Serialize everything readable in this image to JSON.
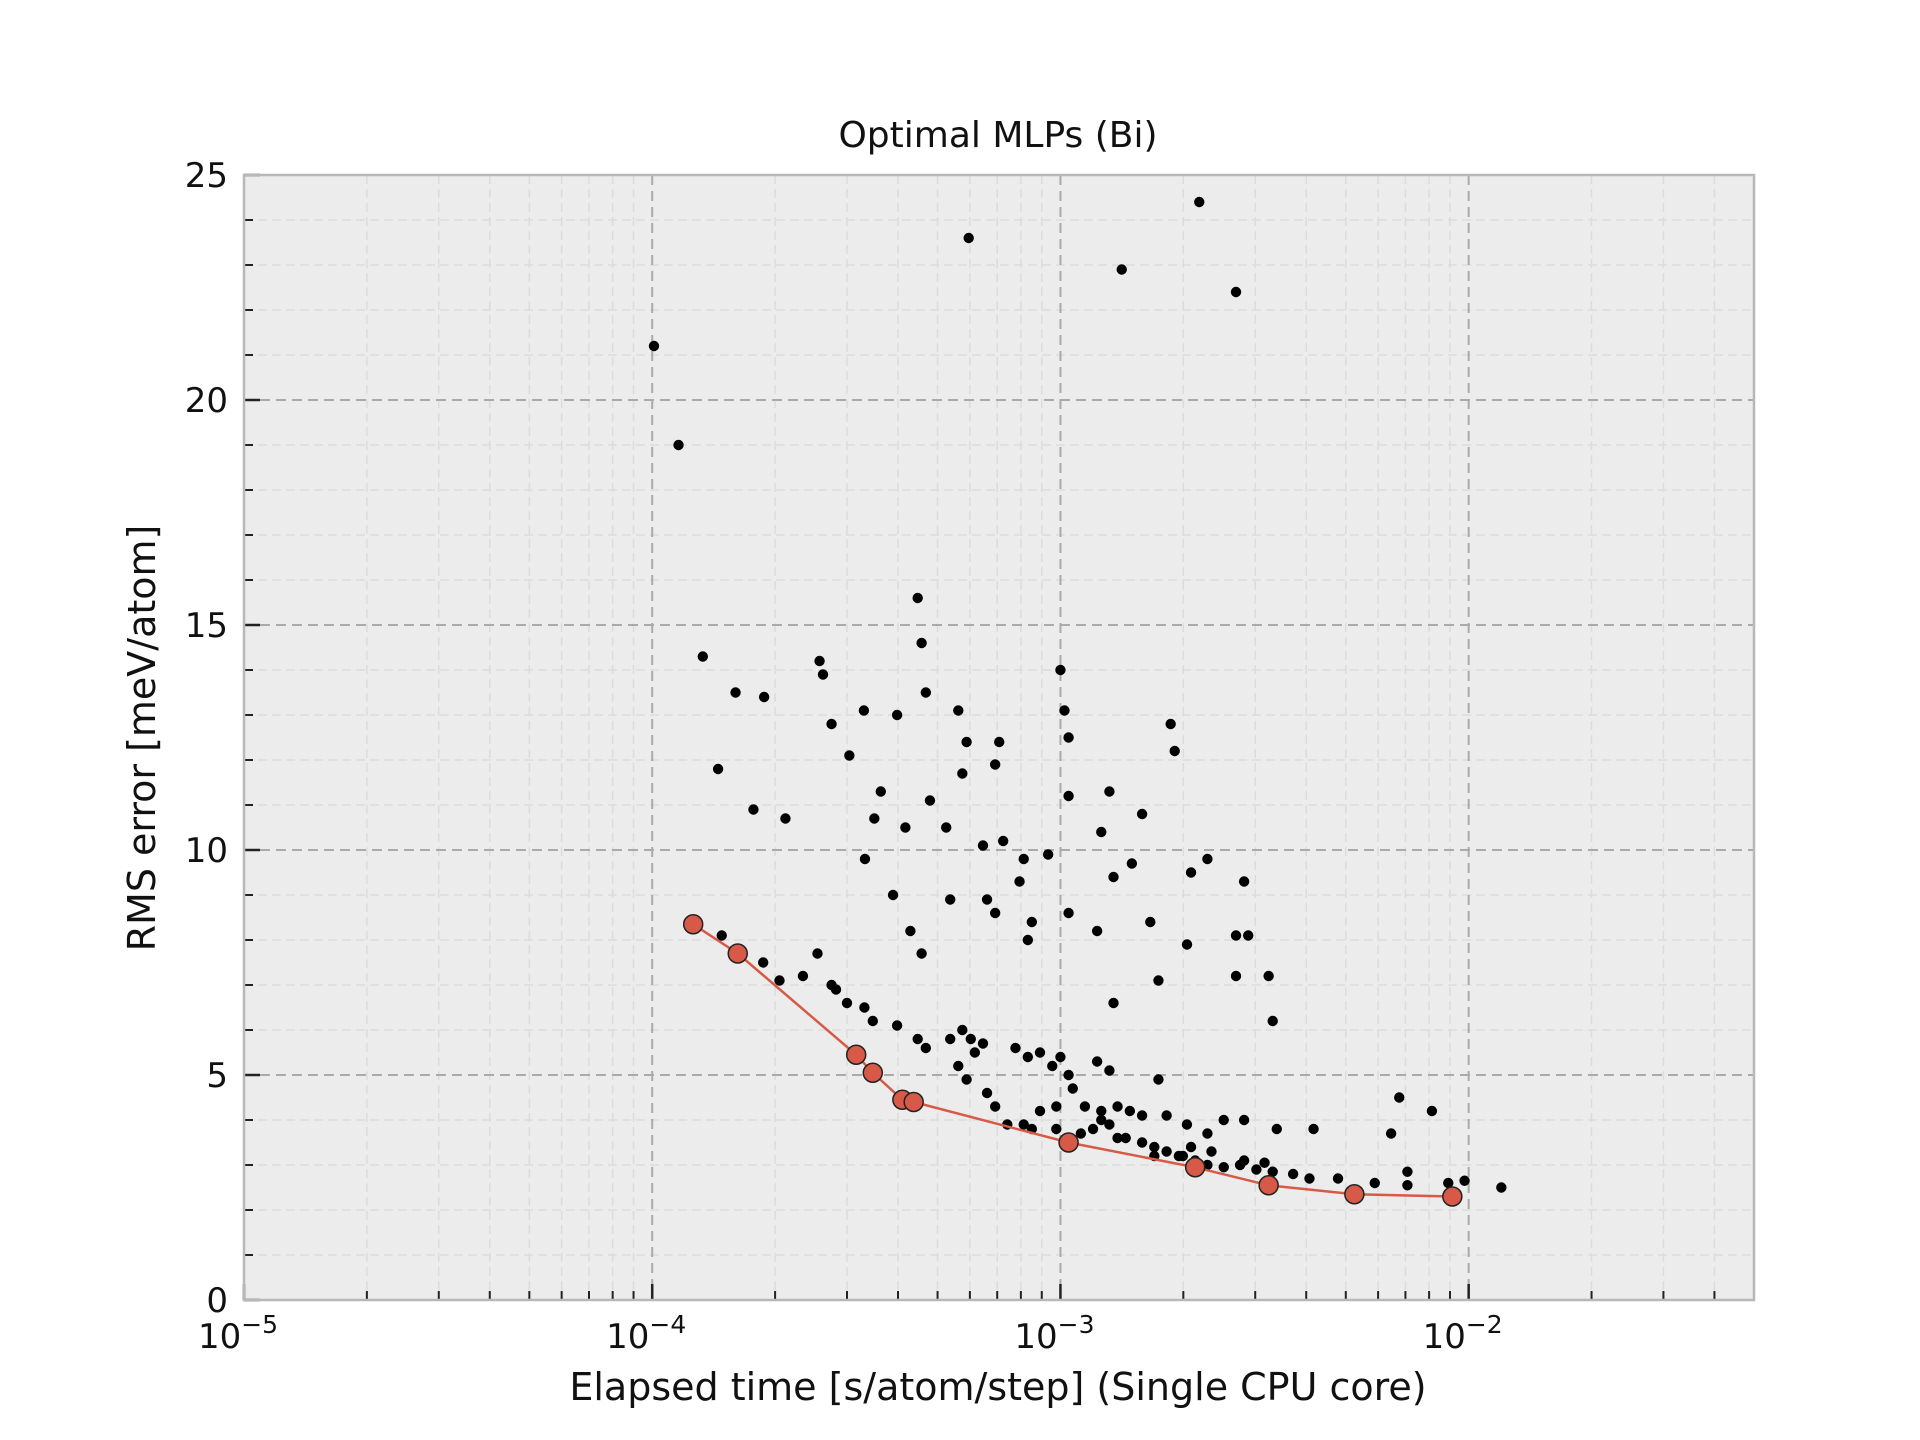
{
  "chart_data": {
    "type": "scatter",
    "title": "Optimal MLPs (Bi)",
    "xlabel": "Elapsed time [s/atom/step] (Single CPU core)",
    "ylabel": "RMS error [meV/atom]",
    "xscale": "log",
    "xlim": [
      1e-05,
      0.05
    ],
    "ylim": [
      0,
      25
    ],
    "grid": true,
    "x_ticks": [
      {
        "value": 1e-05,
        "base": "10",
        "exp": "−5"
      },
      {
        "value": 0.0001,
        "base": "10",
        "exp": "−4"
      },
      {
        "value": 0.001,
        "base": "10",
        "exp": "−3"
      },
      {
        "value": 0.01,
        "base": "10",
        "exp": "−2"
      }
    ],
    "y_ticks": [
      {
        "value": 0,
        "label": "0"
      },
      {
        "value": 5,
        "label": "5"
      },
      {
        "value": 10,
        "label": "10"
      },
      {
        "value": 15,
        "label": "15"
      },
      {
        "value": 20,
        "label": "20"
      },
      {
        "value": 25,
        "label": "25"
      }
    ],
    "colors": {
      "background": "#ececec",
      "points": "#000000",
      "pareto": "#d65a47",
      "grid": "#aaaaaa",
      "frame": "#b8b8b8"
    },
    "series": [
      {
        "kind": "all",
        "points": [
          [
            0.000101,
            21.2
          ],
          [
            0.000116,
            19.0
          ],
          [
            0.000133,
            14.3
          ],
          [
            0.000145,
            11.8
          ],
          [
            0.00016,
            13.5
          ],
          [
            0.000177,
            10.9
          ],
          [
            0.000188,
            13.4
          ],
          [
            0.000212,
            10.7
          ],
          [
            0.000257,
            14.2
          ],
          [
            0.000262,
            13.9
          ],
          [
            0.000275,
            12.8
          ],
          [
            0.000304,
            12.1
          ],
          [
            0.00033,
            13.1
          ],
          [
            0.00035,
            10.7
          ],
          [
            0.000363,
            11.3
          ],
          [
            0.000332,
            9.8
          ],
          [
            0.000389,
            9.0
          ],
          [
            0.000398,
            13.0
          ],
          [
            0.000417,
            10.5
          ],
          [
            0.000447,
            15.6
          ],
          [
            0.000457,
            14.6
          ],
          [
            0.000468,
            13.5
          ],
          [
            0.000479,
            11.1
          ],
          [
            0.000525,
            10.5
          ],
          [
            0.000562,
            13.1
          ],
          [
            0.000589,
            12.4
          ],
          [
            0.000575,
            11.7
          ],
          [
            0.000596,
            23.6
          ],
          [
            0.000646,
            10.1
          ],
          [
            0.000708,
            12.4
          ],
          [
            0.000692,
            11.9
          ],
          [
            0.000724,
            10.2
          ],
          [
            0.000813,
            9.8
          ],
          [
            0.000794,
            9.3
          ],
          [
            0.000933,
            9.9
          ],
          [
            0.001,
            14.0
          ],
          [
            0.001023,
            13.1
          ],
          [
            0.001047,
            12.5
          ],
          [
            0.001047,
            11.2
          ],
          [
            0.001259,
            10.4
          ],
          [
            0.001318,
            11.3
          ],
          [
            0.001413,
            22.9
          ],
          [
            0.001585,
            10.8
          ],
          [
            0.001862,
            12.8
          ],
          [
            0.001905,
            12.2
          ],
          [
            0.002188,
            24.4
          ],
          [
            0.002089,
            9.5
          ],
          [
            0.002291,
            9.8
          ],
          [
            0.002692,
            22.4
          ],
          [
            0.002818,
            9.3
          ],
          [
            0.002692,
            8.1
          ],
          [
            0.002884,
            8.1
          ],
          [
            0.002692,
            7.2
          ],
          [
            0.003236,
            7.2
          ],
          [
            0.003311,
            6.2
          ],
          [
            0.000429,
            8.2
          ],
          [
            0.000457,
            7.7
          ],
          [
            0.000537,
            8.9
          ],
          [
            0.000661,
            8.9
          ],
          [
            0.000692,
            8.6
          ],
          [
            0.000851,
            8.4
          ],
          [
            0.000832,
            8.0
          ],
          [
            0.001047,
            8.6
          ],
          [
            0.00123,
            8.2
          ],
          [
            0.001349,
            9.4
          ],
          [
            0.001496,
            9.7
          ],
          [
            0.00166,
            8.4
          ],
          [
            0.001738,
            7.1
          ],
          [
            0.002042,
            7.9
          ],
          [
            0.001349,
            6.6
          ],
          [
            0.000148,
            8.1
          ],
          [
            0.000187,
            7.5
          ],
          [
            0.000205,
            7.1
          ],
          [
            0.000234,
            7.2
          ],
          [
            0.000254,
            7.7
          ],
          [
            0.000275,
            7.0
          ],
          [
            0.000282,
            6.9
          ],
          [
            0.0003,
            6.6
          ],
          [
            0.000331,
            6.5
          ],
          [
            0.000347,
            6.2
          ],
          [
            0.000398,
            6.1
          ],
          [
            0.000447,
            5.8
          ],
          [
            0.000468,
            5.6
          ],
          [
            0.000537,
            5.8
          ],
          [
            0.000575,
            6.0
          ],
          [
            0.000603,
            5.8
          ],
          [
            0.000617,
            5.5
          ],
          [
            0.000646,
            5.7
          ],
          [
            0.000562,
            5.2
          ],
          [
            0.000589,
            4.9
          ],
          [
            0.000661,
            4.6
          ],
          [
            0.000692,
            4.3
          ],
          [
            0.000776,
            5.6
          ],
          [
            0.000832,
            5.4
          ],
          [
            0.000891,
            5.5
          ],
          [
            0.000955,
            5.2
          ],
          [
            0.001,
            5.4
          ],
          [
            0.001047,
            5.0
          ],
          [
            0.001072,
            4.7
          ],
          [
            0.00123,
            5.3
          ],
          [
            0.001318,
            5.1
          ],
          [
            0.00138,
            4.3
          ],
          [
            0.001259,
            4.0
          ],
          [
            0.001202,
            3.8
          ],
          [
            0.000891,
            4.2
          ],
          [
            0.000813,
            3.9
          ],
          [
            0.000977,
            3.8
          ],
          [
            0.001122,
            3.7
          ],
          [
            0.001445,
            3.6
          ],
          [
            0.001585,
            3.5
          ],
          [
            0.001698,
            3.4
          ],
          [
            0.00182,
            3.3
          ],
          [
            0.001995,
            3.2
          ],
          [
            0.002138,
            3.1
          ],
          [
            0.002291,
            3.0
          ],
          [
            0.002512,
            2.95
          ],
          [
            0.002754,
            3.0
          ],
          [
            0.00302,
            2.9
          ],
          [
            0.003311,
            2.85
          ],
          [
            0.003715,
            2.8
          ],
          [
            0.004074,
            2.7
          ],
          [
            0.004786,
            2.7
          ],
          [
            0.005888,
            2.6
          ],
          [
            0.008913,
            2.6
          ],
          [
            0.009772,
            2.65
          ],
          [
            0.012023,
            2.5
          ],
          [
            0.006761,
            4.5
          ],
          [
            0.006457,
            3.7
          ],
          [
            0.008128,
            4.2
          ],
          [
            0.004169,
            3.8
          ],
          [
            0.003388,
            3.8
          ],
          [
            0.00182,
            4.1
          ],
          [
            0.002041,
            3.9
          ],
          [
            0.002512,
            4.0
          ],
          [
            0.002818,
            4.0
          ],
          [
            0.001585,
            4.1
          ],
          [
            0.001738,
            4.9
          ],
          [
            0.001479,
            4.2
          ],
          [
            0.001259,
            4.2
          ],
          [
            0.001148,
            4.3
          ],
          [
            0.000977,
            4.3
          ],
          [
            0.000851,
            3.8
          ],
          [
            0.000741,
            3.9
          ],
          [
            0.002291,
            3.7
          ],
          [
            0.002089,
            3.4
          ],
          [
            0.00195,
            3.2
          ],
          [
            0.002818,
            3.1
          ],
          [
            0.003162,
            3.05
          ],
          [
            0.007079,
            2.85
          ],
          [
            0.007079,
            2.55
          ],
          [
            0.001698,
            3.2
          ],
          [
            0.002344,
            3.3
          ],
          [
            0.00138,
            3.6
          ],
          [
            0.001318,
            3.9
          ]
        ]
      },
      {
        "kind": "pareto",
        "points": [
          [
            0.000126,
            8.35
          ],
          [
            0.000162,
            7.7
          ],
          [
            0.000316,
            5.45
          ],
          [
            0.000347,
            5.05
          ],
          [
            0.00041,
            4.45
          ],
          [
            0.000437,
            4.4
          ],
          [
            0.001047,
            3.5
          ],
          [
            0.002138,
            2.95
          ],
          [
            0.003236,
            2.55
          ],
          [
            0.005248,
            2.35
          ],
          [
            0.00912,
            2.3
          ]
        ]
      }
    ]
  }
}
